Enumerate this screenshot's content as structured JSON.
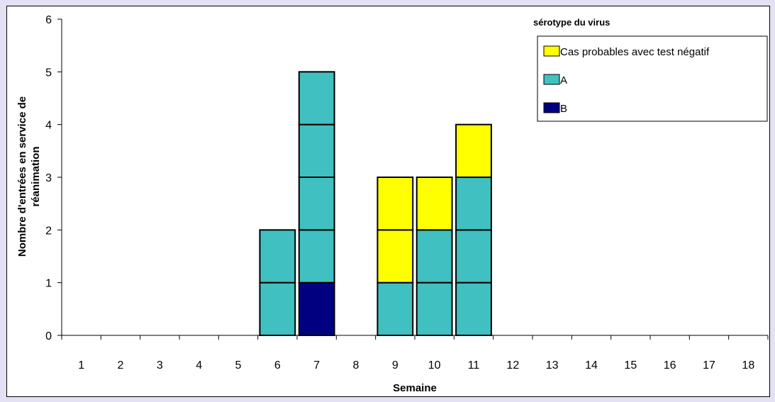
{
  "chart_data": {
    "type": "bar",
    "stacked": true,
    "unit_boxes": true,
    "categories": [
      "1",
      "2",
      "3",
      "4",
      "5",
      "6",
      "7",
      "8",
      "9",
      "10",
      "11",
      "12",
      "13",
      "14",
      "15",
      "16",
      "17",
      "18"
    ],
    "series": [
      {
        "name": "B",
        "color": "#000080",
        "values": [
          0,
          0,
          0,
          0,
          0,
          0,
          1,
          0,
          0,
          0,
          0,
          0,
          0,
          0,
          0,
          0,
          0,
          0
        ]
      },
      {
        "name": "A",
        "color": "#40c0c0",
        "values": [
          0,
          0,
          0,
          0,
          0,
          2,
          4,
          0,
          1,
          2,
          3,
          0,
          0,
          0,
          0,
          0,
          0,
          0
        ]
      },
      {
        "name": "Cas probables avec test négatif",
        "color": "#ffff00",
        "values": [
          0,
          0,
          0,
          0,
          0,
          0,
          0,
          0,
          2,
          1,
          1,
          0,
          0,
          0,
          0,
          0,
          0,
          0
        ]
      }
    ],
    "legend_order": [
      "Cas probables avec test négatif",
      "A",
      "B"
    ],
    "legend_title": "sérotype du virus",
    "legend_position": "top-right",
    "xlabel": "Semaine",
    "ylabel_lines": [
      "Nombre d'entrées en service de",
      "réanimation"
    ],
    "ylim": [
      0,
      6
    ],
    "yticks": [
      "0",
      "1",
      "2",
      "3",
      "4",
      "5",
      "6"
    ],
    "grid": false
  }
}
